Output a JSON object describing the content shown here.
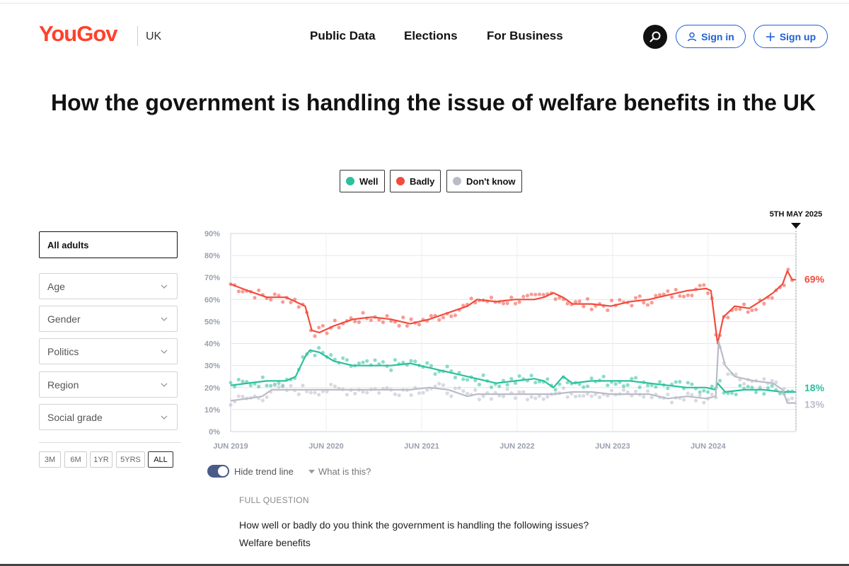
{
  "header": {
    "logo": "YouGov",
    "region": "UK",
    "nav": [
      "Public Data",
      "Elections",
      "For Business"
    ],
    "sign_in": "Sign in",
    "sign_up": "Sign up"
  },
  "page_title": "How the government is handling the issue of welfare benefits in the UK",
  "legend": [
    {
      "label": "Well",
      "color": "#2cc09c"
    },
    {
      "label": "Badly",
      "color": "#f24b3e"
    },
    {
      "label": "Don't know",
      "color": "#b9bcc8"
    }
  ],
  "filters": {
    "selected": "All adults",
    "dropdowns": [
      "Age",
      "Gender",
      "Politics",
      "Region",
      "Social grade"
    ]
  },
  "ranges": [
    "3M",
    "6M",
    "1YR",
    "5YRS",
    "ALL"
  ],
  "active_range": "ALL",
  "controls": {
    "trend_toggle": "Hide trend line",
    "what_is_this": "What is this?"
  },
  "question": {
    "label": "FULL QUESTION",
    "text": "How well or badly do you think the government is handling the following issues?",
    "item": "Welfare benefits"
  },
  "chart_data": {
    "type": "line",
    "date_marker": "5TH MAY 2025",
    "x_tick_labels": [
      "JUN 2019",
      "JUN 2020",
      "JUN 2021",
      "JUN 2022",
      "JUN 2023",
      "JUN 2024"
    ],
    "x_ticks": [
      2019.42,
      2020.42,
      2021.42,
      2022.42,
      2023.42,
      2024.42
    ],
    "xlim": [
      2019.42,
      2025.34
    ],
    "y_tick_labels": [
      "0%",
      "10%",
      "20%",
      "30%",
      "40%",
      "50%",
      "60%",
      "70%",
      "80%",
      "90%"
    ],
    "ylim": [
      0,
      90
    ],
    "grid": true,
    "series": [
      {
        "name": "Badly",
        "color": "#f24b3e",
        "end_label": "69%",
        "points": [
          [
            2019.42,
            67
          ],
          [
            2019.6,
            64
          ],
          [
            2019.8,
            61
          ],
          [
            2020.0,
            61
          ],
          [
            2020.1,
            59
          ],
          [
            2020.2,
            57
          ],
          [
            2020.27,
            46
          ],
          [
            2020.35,
            45
          ],
          [
            2020.5,
            48
          ],
          [
            2020.7,
            51
          ],
          [
            2020.9,
            52
          ],
          [
            2021.1,
            51
          ],
          [
            2021.3,
            49
          ],
          [
            2021.5,
            51
          ],
          [
            2021.7,
            54
          ],
          [
            2021.9,
            57
          ],
          [
            2022.0,
            60
          ],
          [
            2022.2,
            59
          ],
          [
            2022.4,
            60
          ],
          [
            2022.6,
            60
          ],
          [
            2022.7,
            61
          ],
          [
            2022.8,
            63
          ],
          [
            2022.9,
            61
          ],
          [
            2023.0,
            58
          ],
          [
            2023.2,
            58
          ],
          [
            2023.4,
            57
          ],
          [
            2023.6,
            59
          ],
          [
            2023.8,
            60
          ],
          [
            2024.0,
            62
          ],
          [
            2024.2,
            64
          ],
          [
            2024.4,
            65
          ],
          [
            2024.45,
            64
          ],
          [
            2024.52,
            40
          ],
          [
            2024.58,
            52
          ],
          [
            2024.7,
            57
          ],
          [
            2024.85,
            56
          ],
          [
            2025.0,
            60
          ],
          [
            2025.1,
            63
          ],
          [
            2025.2,
            67
          ],
          [
            2025.25,
            73
          ],
          [
            2025.3,
            69
          ],
          [
            2025.34,
            69
          ]
        ]
      },
      {
        "name": "Well",
        "color": "#2cc09c",
        "end_label": "18%",
        "points": [
          [
            2019.42,
            21
          ],
          [
            2019.6,
            22
          ],
          [
            2019.8,
            23
          ],
          [
            2020.0,
            23
          ],
          [
            2020.1,
            25
          ],
          [
            2020.2,
            34
          ],
          [
            2020.25,
            37
          ],
          [
            2020.35,
            36
          ],
          [
            2020.5,
            32
          ],
          [
            2020.7,
            30
          ],
          [
            2020.9,
            30
          ],
          [
            2021.1,
            30
          ],
          [
            2021.3,
            31
          ],
          [
            2021.5,
            29
          ],
          [
            2021.7,
            27
          ],
          [
            2021.9,
            25
          ],
          [
            2022.0,
            24
          ],
          [
            2022.2,
            22
          ],
          [
            2022.4,
            23
          ],
          [
            2022.6,
            24
          ],
          [
            2022.7,
            23
          ],
          [
            2022.8,
            20
          ],
          [
            2022.9,
            25
          ],
          [
            2023.0,
            22
          ],
          [
            2023.2,
            23
          ],
          [
            2023.4,
            23
          ],
          [
            2023.6,
            23
          ],
          [
            2023.8,
            22
          ],
          [
            2024.0,
            21
          ],
          [
            2024.2,
            20
          ],
          [
            2024.4,
            20
          ],
          [
            2024.5,
            19
          ],
          [
            2024.52,
            22
          ],
          [
            2024.6,
            18
          ],
          [
            2024.8,
            19
          ],
          [
            2025.0,
            19
          ],
          [
            2025.2,
            18
          ],
          [
            2025.34,
            18
          ]
        ]
      },
      {
        "name": "Don't know",
        "color": "#b9bcc8",
        "end_label": "13%",
        "points": [
          [
            2019.42,
            14
          ],
          [
            2019.6,
            15
          ],
          [
            2019.75,
            16
          ],
          [
            2019.85,
            19
          ],
          [
            2020.1,
            19
          ],
          [
            2020.3,
            19
          ],
          [
            2020.5,
            19
          ],
          [
            2020.7,
            19
          ],
          [
            2020.9,
            19
          ],
          [
            2021.1,
            19
          ],
          [
            2021.3,
            19
          ],
          [
            2021.5,
            20
          ],
          [
            2021.7,
            19
          ],
          [
            2021.9,
            16
          ],
          [
            2022.0,
            17
          ],
          [
            2022.2,
            17
          ],
          [
            2022.4,
            17
          ],
          [
            2022.6,
            17
          ],
          [
            2022.8,
            17
          ],
          [
            2023.0,
            18
          ],
          [
            2023.2,
            18
          ],
          [
            2023.4,
            17
          ],
          [
            2023.6,
            17
          ],
          [
            2023.8,
            17
          ],
          [
            2024.0,
            15
          ],
          [
            2024.2,
            16
          ],
          [
            2024.4,
            15
          ],
          [
            2024.5,
            16
          ],
          [
            2024.53,
            41
          ],
          [
            2024.6,
            30
          ],
          [
            2024.7,
            25
          ],
          [
            2024.9,
            23
          ],
          [
            2025.1,
            22
          ],
          [
            2025.2,
            19
          ],
          [
            2025.25,
            13
          ],
          [
            2025.34,
            13
          ]
        ]
      }
    ]
  }
}
